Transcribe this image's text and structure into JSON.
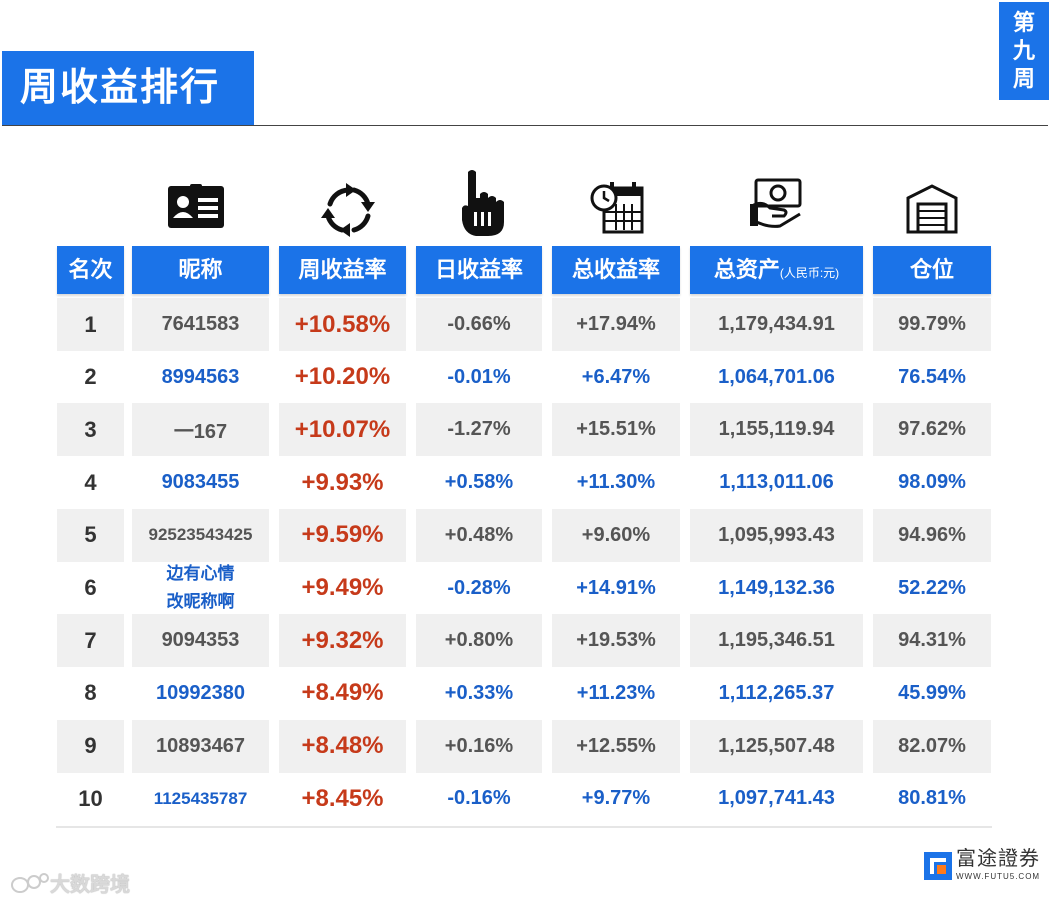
{
  "title": "周收益排行",
  "week_badge": [
    "第",
    "九",
    "周"
  ],
  "headers": {
    "rank": "名次",
    "nickname": "昵称",
    "weekly": "周收益率",
    "daily": "日收益率",
    "total": "总收益率",
    "assets": "总资产",
    "assets_unit": "(人民币:元)",
    "position": "仓位"
  },
  "icons": [
    "id-card-icon",
    "refresh-arrows-icon",
    "pointing-hand-icon",
    "calendar-clock-icon",
    "money-hand-icon",
    "warehouse-icon"
  ],
  "colors": {
    "header_blue": "#1b73e8",
    "weekly_red": "#c63a1a",
    "value_blue": "#1a5fc8",
    "value_grey": "#555555"
  },
  "rows": [
    {
      "rank": "1",
      "nick1": "7641583",
      "nick2": "",
      "weekly": "+10.58%",
      "daily": "-0.66%",
      "total": "+17.94%",
      "assets": "1,179,434.91",
      "position": "99.79%"
    },
    {
      "rank": "2",
      "nick1": "8994563",
      "nick2": "",
      "weekly": "+10.20%",
      "daily": "-0.01%",
      "total": "+6.47%",
      "assets": "1,064,701.06",
      "position": "76.54%"
    },
    {
      "rank": "3",
      "nick1": "一167",
      "nick2": "",
      "weekly": "+10.07%",
      "daily": "-1.27%",
      "total": "+15.51%",
      "assets": "1,155,119.94",
      "position": "97.62%"
    },
    {
      "rank": "4",
      "nick1": "9083455",
      "nick2": "",
      "weekly": "+9.93%",
      "daily": "+0.58%",
      "total": "+11.30%",
      "assets": "1,113,011.06",
      "position": "98.09%"
    },
    {
      "rank": "5",
      "nick1": "92523543425",
      "nick2": "",
      "weekly": "+9.59%",
      "daily": "+0.48%",
      "total": "+9.60%",
      "assets": "1,095,993.43",
      "position": "94.96%"
    },
    {
      "rank": "6",
      "nick1": "边有心情",
      "nick2": "改昵称啊",
      "weekly": "+9.49%",
      "daily": "-0.28%",
      "total": "+14.91%",
      "assets": "1,149,132.36",
      "position": "52.22%"
    },
    {
      "rank": "7",
      "nick1": "9094353",
      "nick2": "",
      "weekly": "+9.32%",
      "daily": "+0.80%",
      "total": "+19.53%",
      "assets": "1,195,346.51",
      "position": "94.31%"
    },
    {
      "rank": "8",
      "nick1": "10992380",
      "nick2": "",
      "weekly": "+8.49%",
      "daily": "+0.33%",
      "total": "+11.23%",
      "assets": "1,112,265.37",
      "position": "45.99%"
    },
    {
      "rank": "9",
      "nick1": "10893467",
      "nick2": "",
      "weekly": "+8.48%",
      "daily": "+0.16%",
      "total": "+12.55%",
      "assets": "1,125,507.48",
      "position": "82.07%"
    },
    {
      "rank": "10",
      "nick1": "1125435787",
      "nick2": "",
      "weekly": "+8.45%",
      "daily": "-0.16%",
      "total": "+9.77%",
      "assets": "1,097,741.43",
      "position": "80.81%"
    }
  ],
  "watermark": "大数跨境",
  "logo": {
    "cn": "富途證券",
    "en": "WWW.FUTU5.COM"
  }
}
